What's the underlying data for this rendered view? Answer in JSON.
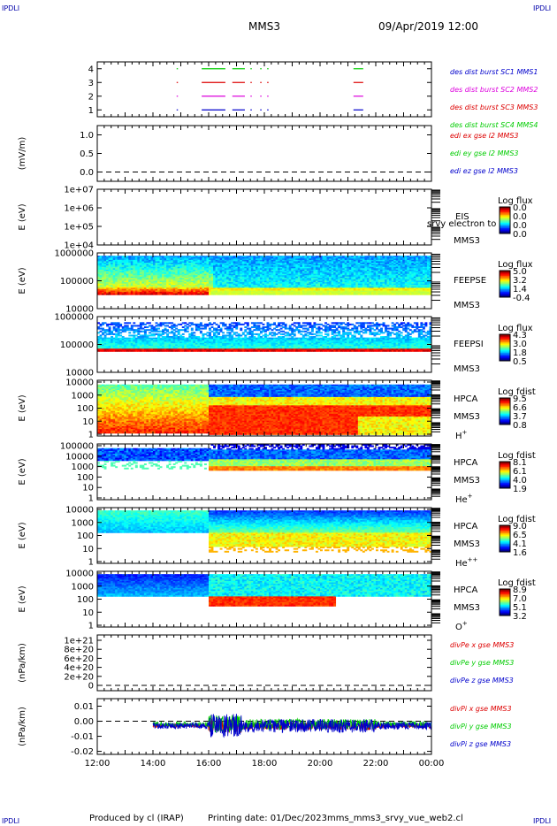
{
  "header": {
    "corner_left": "IPDLI",
    "corner_right": "IPDLI",
    "spacecraft": "MMS3",
    "datetime": "09/Apr/2019 12:00"
  },
  "footer": {
    "produced": "Produced by cl (IRAP)",
    "printing_date": "Printing date: 01/Dec/2023",
    "file": "mms_mms3_srvy_vue_web2.cl",
    "corner_left": "IPDLI",
    "corner_right": "IPDLI"
  },
  "time_axis": {
    "ticks": [
      "12:00",
      "14:00",
      "16:00",
      "18:00",
      "20:00",
      "22:00",
      "00:00"
    ]
  },
  "colors": {
    "blue": "#0000cc",
    "magenta": "#dd00dd",
    "red": "#dd0000",
    "green": "#00cc00",
    "darkred": "#cc0000"
  },
  "chart_data": [
    {
      "type": "line",
      "name": "burst",
      "ylim": [
        0.5,
        4.5
      ],
      "yticks": [
        "4",
        "3",
        "2",
        "1"
      ],
      "legend": [
        {
          "text": "des dist burst SC1 MMS1",
          "color": "#0000cc"
        },
        {
          "text": "des dist burst SC2 MMS2",
          "color": "#dd00dd"
        },
        {
          "text": "des dist burst SC3 MMS3",
          "color": "#dd0000"
        },
        {
          "text": "des dist burst SC4 MMS4",
          "color": "#00cc00"
        }
      ],
      "segments_hours": [
        [
          14.85,
          14.88
        ],
        [
          15.75,
          16.6
        ],
        [
          16.85,
          17.3
        ],
        [
          17.5,
          17.55
        ],
        [
          17.85,
          17.9
        ],
        [
          18.1,
          18.15
        ],
        [
          21.2,
          21.55
        ]
      ]
    },
    {
      "type": "line",
      "name": "edi",
      "ylabel": "(mV/m)",
      "ylim": [
        -0.25,
        1.25
      ],
      "yticks": [
        "1.0",
        "0.5",
        "0.0"
      ],
      "legend": [
        {
          "text": "edi ex gse l2 MMS3",
          "color": "#dd0000"
        },
        {
          "text": "edi ey gse l2 MMS3",
          "color": "#00cc00"
        },
        {
          "text": "edi ez gse l2 MMS3",
          "color": "#0000cc"
        }
      ]
    },
    {
      "type": "heatmap",
      "name": "eis",
      "ylabel": "E (eV)",
      "yticks": [
        "1e+07",
        "1e+06",
        "1e+05",
        "1e+04"
      ],
      "labels": [
        "EIS",
        "MMS3"
      ],
      "overlay": "srvy electron to",
      "colorbar": {
        "title": "Log flux",
        "ticks": [
          "0.0",
          "0.0",
          "0.0",
          "0.0"
        ]
      }
    },
    {
      "type": "heatmap",
      "name": "feepse",
      "ylabel": "E (eV)",
      "yticks": [
        "1000000",
        "100000",
        "10000"
      ],
      "labels": [
        "FEEPSE",
        "MMS3"
      ],
      "colorbar": {
        "title": "Log flux",
        "ticks": [
          "5.0",
          "3.2",
          "1.4",
          "-0.4"
        ]
      }
    },
    {
      "type": "heatmap",
      "name": "feepsi",
      "yticks": [
        "1000000",
        "100000",
        "10000"
      ],
      "labels": [
        "FEEPSI",
        "MMS3"
      ],
      "colorbar": {
        "title": "Log flux",
        "ticks": [
          "4.3",
          "3.0",
          "1.8",
          "0.5"
        ]
      }
    },
    {
      "type": "heatmap",
      "name": "hpca-h",
      "ylabel": "E (eV)",
      "yticks": [
        "10000",
        "1000",
        "100",
        "10",
        "1"
      ],
      "labels": [
        "HPCA",
        "MMS3",
        "H+"
      ],
      "colorbar": {
        "title": "Log fdist",
        "ticks": [
          "9.5",
          "6.6",
          "3.7",
          "0.8"
        ]
      }
    },
    {
      "type": "heatmap",
      "name": "hpca-he",
      "ylabel": "E (eV)",
      "yticks": [
        "100000",
        "10000",
        "1000",
        "100",
        "10",
        "1"
      ],
      "labels": [
        "HPCA",
        "MMS3",
        "He+"
      ],
      "colorbar": {
        "title": "Log fdist",
        "ticks": [
          "8.1",
          "6.1",
          "4.0",
          "1.9"
        ]
      }
    },
    {
      "type": "heatmap",
      "name": "hpca-hepp",
      "ylabel": "E (eV)",
      "yticks": [
        "10000",
        "1000",
        "100",
        "10",
        "1"
      ],
      "labels": [
        "HPCA",
        "MMS3",
        "He++"
      ],
      "colorbar": {
        "title": "Log fdist",
        "ticks": [
          "9.0",
          "6.5",
          "4.1",
          "1.6"
        ]
      }
    },
    {
      "type": "heatmap",
      "name": "hpca-o",
      "ylabel": "E (eV)",
      "yticks": [
        "10000",
        "1000",
        "100",
        "10",
        "1"
      ],
      "labels": [
        "HPCA",
        "MMS3",
        "O+"
      ],
      "colorbar": {
        "title": "Log fdist",
        "ticks": [
          "8.9",
          "7.0",
          "5.1",
          "3.2"
        ]
      }
    },
    {
      "type": "line",
      "name": "divpe",
      "ylabel": "(nPa/km)",
      "yticks": [
        "1e+21",
        "8e+20",
        "6e+20",
        "4e+20",
        "2e+20",
        "0"
      ],
      "legend": [
        {
          "text": "divPe x gse MMS3",
          "color": "#dd0000"
        },
        {
          "text": "divPe y gse MMS3",
          "color": "#00cc00"
        },
        {
          "text": "divPe z gse MMS3",
          "color": "#0000cc"
        }
      ]
    },
    {
      "type": "line",
      "name": "divpi",
      "ylabel": "(nPa/km)",
      "ylim": [
        -0.022,
        0.015
      ],
      "yticks": [
        "0.01",
        "0.00",
        "-0.01",
        "-0.02"
      ],
      "legend": [
        {
          "text": "divPi x gse MMS3",
          "color": "#dd0000"
        },
        {
          "text": "divPi y gse MMS3",
          "color": "#00cc00"
        },
        {
          "text": "divPi z gse MMS3",
          "color": "#0000cc"
        }
      ]
    }
  ]
}
